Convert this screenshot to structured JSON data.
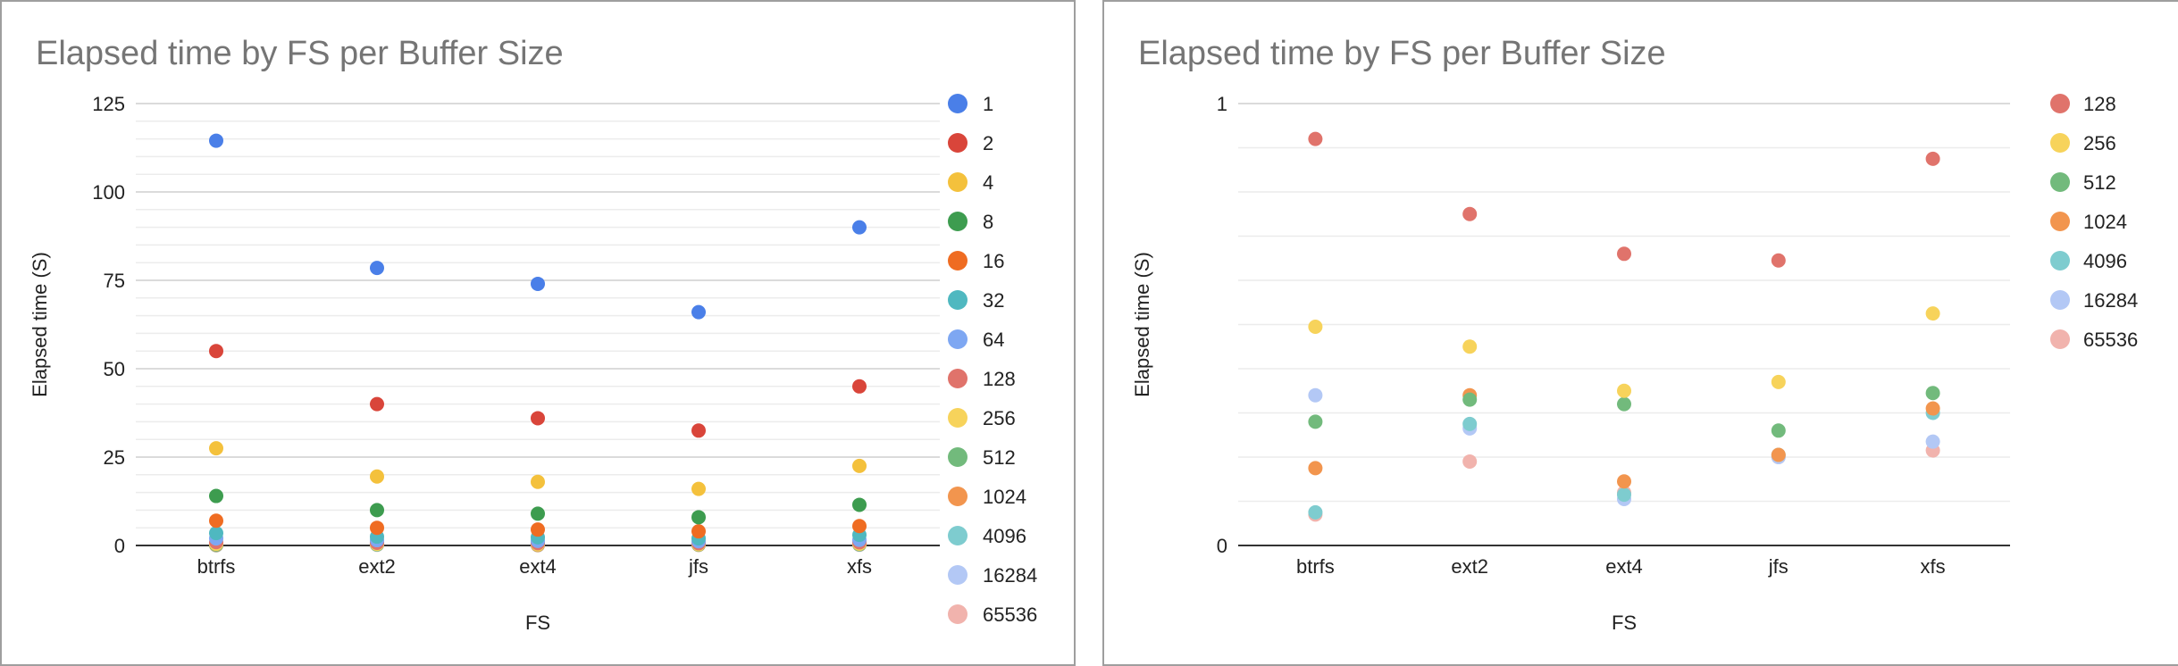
{
  "charts": [
    {
      "type": "scatter",
      "title": "Elapsed time by FS per Buffer Size",
      "xlabel": "FS",
      "ylabel": "Elapsed time (S)",
      "categories": [
        "btrfs",
        "ext2",
        "ext4",
        "jfs",
        "xfs"
      ],
      "ylim": [
        0,
        125
      ],
      "y_ticks": [
        0,
        25,
        50,
        75,
        100,
        125
      ],
      "minor_gridlines": true,
      "legend_position": "right",
      "series": [
        {
          "name": "1",
          "color": "#4a7fe8",
          "values": [
            114.5,
            78.5,
            74.0,
            66.0,
            90.0
          ]
        },
        {
          "name": "2",
          "color": "#d9453a",
          "values": [
            55.0,
            40.0,
            36.0,
            32.5,
            45.0
          ]
        },
        {
          "name": "4",
          "color": "#f4c13c",
          "values": [
            27.5,
            19.5,
            18.0,
            16.0,
            22.5
          ]
        },
        {
          "name": "8",
          "color": "#3d9c4f",
          "values": [
            14.0,
            10.0,
            9.0,
            8.0,
            11.5
          ]
        },
        {
          "name": "16",
          "color": "#ef6c22",
          "values": [
            7.0,
            5.0,
            4.5,
            4.0,
            5.5
          ]
        },
        {
          "name": "32",
          "color": "#4fb8c0",
          "values": [
            3.5,
            2.5,
            2.3,
            2.0,
            3.0
          ]
        },
        {
          "name": "64",
          "color": "#7ea7f2",
          "values": [
            2.0,
            1.5,
            1.3,
            1.2,
            1.6
          ]
        },
        {
          "name": "128",
          "color": "#e0736b",
          "values": [
            0.95,
            0.75,
            0.66,
            0.65,
            0.9
          ]
        },
        {
          "name": "256",
          "color": "#f7d35b",
          "values": [
            0.49,
            0.45,
            0.35,
            0.37,
            0.52
          ]
        },
        {
          "name": "512",
          "color": "#72ba7c",
          "values": [
            0.28,
            0.33,
            0.32,
            0.26,
            0.34
          ]
        },
        {
          "name": "1024",
          "color": "#f2954e",
          "values": [
            0.17,
            0.34,
            0.14,
            0.2,
            0.31
          ]
        },
        {
          "name": "4096",
          "color": "#7ecccf",
          "values": [
            0.07,
            0.27,
            0.11,
            0.21,
            0.3
          ]
        },
        {
          "name": "16284",
          "color": "#b3c8f5",
          "values": [
            0.34,
            0.26,
            0.1,
            0.2,
            0.23
          ]
        },
        {
          "name": "65536",
          "color": "#f1b3ad",
          "values": [
            0.07,
            0.19,
            0.12,
            0.2,
            0.21
          ]
        }
      ]
    },
    {
      "type": "scatter",
      "title": "Elapsed time by FS per Buffer Size",
      "xlabel": "FS",
      "ylabel": "Elapsed time (S)",
      "categories": [
        "btrfs",
        "ext2",
        "ext4",
        "jfs",
        "xfs"
      ],
      "ylim": [
        0,
        1
      ],
      "y_ticks": [
        0,
        1
      ],
      "minor_gridlines": true,
      "legend_position": "right",
      "series": [
        {
          "name": "128",
          "color": "#e0736b",
          "values": [
            0.92,
            0.75,
            0.66,
            0.645,
            0.875
          ]
        },
        {
          "name": "256",
          "color": "#f7d35b",
          "values": [
            0.495,
            0.45,
            0.35,
            0.37,
            0.525
          ]
        },
        {
          "name": "512",
          "color": "#72ba7c",
          "values": [
            0.28,
            0.33,
            0.32,
            0.26,
            0.345
          ]
        },
        {
          "name": "1024",
          "color": "#f2954e",
          "values": [
            0.175,
            0.34,
            0.145,
            0.205,
            0.31
          ]
        },
        {
          "name": "4096",
          "color": "#7ecccf",
          "values": [
            0.075,
            0.275,
            0.115,
            0.205,
            0.3
          ]
        },
        {
          "name": "16284",
          "color": "#b3c8f5",
          "values": [
            0.34,
            0.265,
            0.105,
            0.2,
            0.235
          ]
        },
        {
          "name": "65536",
          "color": "#f1b3ad",
          "values": [
            0.07,
            0.19,
            0.12,
            0.2,
            0.215
          ]
        }
      ]
    }
  ]
}
